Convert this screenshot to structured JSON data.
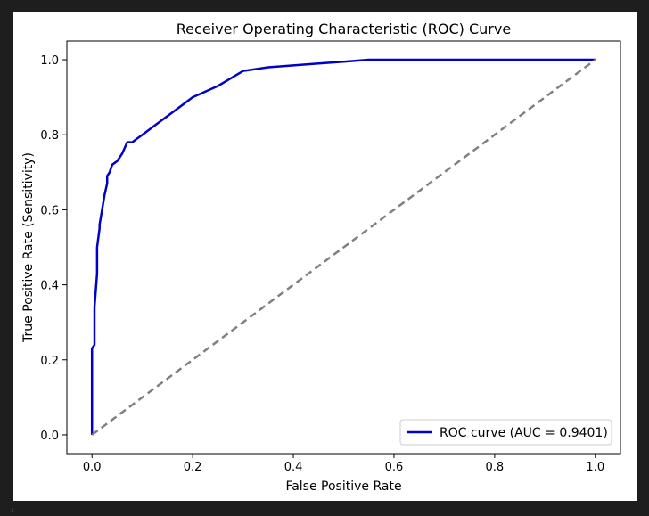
{
  "chart_data": {
    "type": "line",
    "title": "Receiver Operating Characteristic (ROC) Curve",
    "xlabel": "False Positive Rate",
    "ylabel": "True Positive Rate (Sensitivity)",
    "xlim": [
      -0.05,
      1.05
    ],
    "ylim": [
      -0.05,
      1.05
    ],
    "x_ticks": [
      "0.0",
      "0.2",
      "0.4",
      "0.6",
      "0.8",
      "1.0"
    ],
    "y_ticks": [
      "0.0",
      "0.2",
      "0.4",
      "0.6",
      "0.8",
      "1.0"
    ],
    "grid": false,
    "legend_position": "lower-right",
    "series": [
      {
        "name": "ROC curve (AUC = 0.9401)",
        "color": "#0000cc",
        "style": "solid",
        "x": [
          0.0,
          0.0,
          0.005,
          0.005,
          0.01,
          0.01,
          0.012,
          0.015,
          0.015,
          0.02,
          0.025,
          0.03,
          0.03,
          0.035,
          0.04,
          0.05,
          0.06,
          0.07,
          0.08,
          0.09,
          0.1,
          0.12,
          0.14,
          0.16,
          0.18,
          0.2,
          0.25,
          0.3,
          0.35,
          0.4,
          0.45,
          0.5,
          0.55,
          0.6,
          0.8,
          1.0
        ],
        "y": [
          0.0,
          0.23,
          0.24,
          0.34,
          0.43,
          0.5,
          0.52,
          0.55,
          0.56,
          0.6,
          0.64,
          0.67,
          0.69,
          0.7,
          0.72,
          0.73,
          0.75,
          0.78,
          0.78,
          0.79,
          0.8,
          0.82,
          0.84,
          0.86,
          0.88,
          0.9,
          0.93,
          0.97,
          0.98,
          0.985,
          0.99,
          0.995,
          1.0,
          1.0,
          1.0,
          1.0
        ]
      },
      {
        "name": "",
        "color": "#808080",
        "style": "dashed",
        "x": [
          0.0,
          1.0
        ],
        "y": [
          0.0,
          1.0
        ]
      }
    ]
  },
  "scroll_hint": "‹"
}
